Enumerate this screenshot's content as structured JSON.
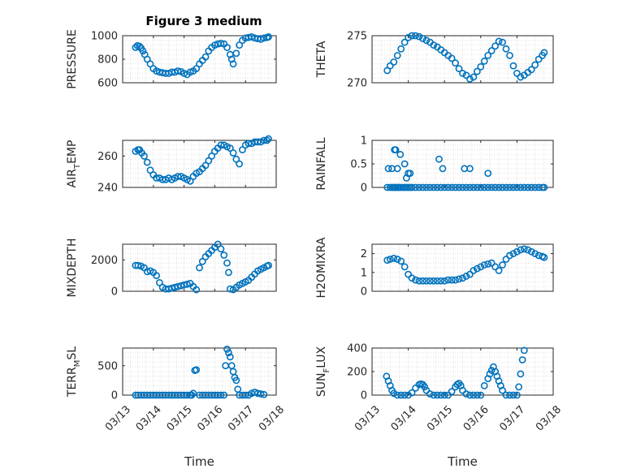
{
  "figure": {
    "title": "Figure 3 medium",
    "marker_color": "#0072BD"
  },
  "chart_data": [
    {
      "type": "scatter",
      "name": "PRESSURE",
      "ylabel": "PRESSURE",
      "xlabel": "",
      "ylim": [
        600,
        1000
      ],
      "yticks": [
        600,
        800,
        1000
      ],
      "show_xticklabels": false,
      "xlim": [
        0,
        5
      ],
      "grid": true,
      "x": [
        0.42,
        0.48,
        0.55,
        0.6,
        0.66,
        0.72,
        0.8,
        0.9,
        1.0,
        1.1,
        1.2,
        1.3,
        1.4,
        1.5,
        1.6,
        1.7,
        1.8,
        1.9,
        2.0,
        2.1,
        2.2,
        2.3,
        2.4,
        2.5,
        2.6,
        2.7,
        2.8,
        2.9,
        3.0,
        3.1,
        3.2,
        3.3,
        3.4,
        3.5,
        3.55,
        3.6,
        3.7,
        3.8,
        3.9,
        4.0,
        4.1,
        4.2,
        4.3,
        4.4,
        4.5,
        4.6,
        4.7,
        4.75
      ],
      "y": [
        900,
        915,
        910,
        895,
        870,
        840,
        800,
        760,
        720,
        700,
        690,
        685,
        680,
        680,
        690,
        690,
        700,
        695,
        680,
        670,
        690,
        700,
        720,
        760,
        790,
        820,
        870,
        900,
        920,
        930,
        935,
        930,
        900,
        840,
        800,
        760,
        850,
        920,
        960,
        980,
        985,
        990,
        980,
        975,
        970,
        980,
        985,
        990
      ]
    },
    {
      "type": "scatter",
      "name": "THETA",
      "ylabel": "THETA",
      "xlabel": "",
      "ylim": [
        270,
        275
      ],
      "yticks": [
        270,
        275
      ],
      "show_xticklabels": false,
      "xlim": [
        0,
        5
      ],
      "grid": true,
      "x": [
        0.42,
        0.5,
        0.6,
        0.7,
        0.8,
        0.9,
        1.0,
        1.1,
        1.2,
        1.3,
        1.4,
        1.5,
        1.6,
        1.7,
        1.8,
        1.9,
        2.0,
        2.1,
        2.2,
        2.3,
        2.4,
        2.5,
        2.6,
        2.7,
        2.8,
        2.9,
        3.0,
        3.1,
        3.2,
        3.3,
        3.4,
        3.5,
        3.6,
        3.7,
        3.8,
        3.9,
        4.0,
        4.1,
        4.2,
        4.3,
        4.4,
        4.5,
        4.6,
        4.7,
        4.75
      ],
      "y": [
        271.3,
        271.8,
        272.2,
        272.9,
        273.6,
        274.3,
        274.8,
        275.0,
        275.0,
        274.9,
        274.7,
        274.5,
        274.3,
        274.0,
        273.8,
        273.5,
        273.2,
        272.9,
        272.6,
        272.1,
        271.5,
        271.0,
        270.8,
        270.4,
        270.6,
        271.2,
        271.7,
        272.3,
        272.9,
        273.4,
        273.9,
        274.4,
        274.3,
        273.6,
        272.9,
        271.8,
        271.0,
        270.6,
        270.8,
        271.1,
        271.4,
        271.9,
        272.5,
        272.9,
        273.2
      ]
    },
    {
      "type": "scatter",
      "name": "AIR_TEMP",
      "ylabel": "AIR",
      "ylabel_sub": "T",
      "ylabel_tail": "EMP",
      "xlabel": "",
      "ylim": [
        240,
        270
      ],
      "yticks": [
        240,
        260
      ],
      "show_xticklabels": false,
      "xlim": [
        0,
        5
      ],
      "grid": true,
      "x": [
        0.42,
        0.5,
        0.55,
        0.62,
        0.7,
        0.8,
        0.9,
        1.0,
        1.1,
        1.2,
        1.3,
        1.4,
        1.5,
        1.6,
        1.7,
        1.8,
        1.9,
        2.0,
        2.1,
        2.2,
        2.3,
        2.4,
        2.5,
        2.6,
        2.7,
        2.8,
        2.9,
        3.0,
        3.1,
        3.2,
        3.3,
        3.4,
        3.5,
        3.6,
        3.7,
        3.8,
        3.9,
        4.0,
        4.1,
        4.2,
        4.3,
        4.4,
        4.5,
        4.6,
        4.7,
        4.75
      ],
      "y": [
        263,
        264,
        264,
        262,
        260,
        256,
        251,
        248,
        246,
        246,
        245,
        245,
        246,
        245,
        246,
        247,
        247,
        246,
        245,
        244,
        247,
        249,
        250,
        252,
        254,
        257,
        260,
        263,
        265,
        267,
        267,
        266,
        265,
        262,
        258,
        255,
        264,
        267,
        268,
        268,
        269,
        269,
        269,
        270,
        270,
        271
      ]
    },
    {
      "type": "scatter",
      "name": "RAINFALL",
      "ylabel": "RAINFALL",
      "xlabel": "",
      "ylim": [
        0,
        1
      ],
      "yticks": [
        0,
        0.5,
        1
      ],
      "show_xticklabels": false,
      "xlim": [
        0,
        5
      ],
      "grid": true,
      "x": [
        0.42,
        0.5,
        0.55,
        0.6,
        0.62,
        0.65,
        0.7,
        0.72,
        0.75,
        0.8,
        0.85,
        0.9,
        0.95,
        1.0,
        1.05,
        1.1,
        1.2,
        1.3,
        1.4,
        1.5,
        1.6,
        1.7,
        1.8,
        1.9,
        2.0,
        2.1,
        2.2,
        2.3,
        2.4,
        2.5,
        2.6,
        2.7,
        2.8,
        2.9,
        3.0,
        3.1,
        3.2,
        3.3,
        3.4,
        3.5,
        3.6,
        3.7,
        3.8,
        3.9,
        4.0,
        4.1,
        4.2,
        4.3,
        4.4,
        4.5,
        4.6,
        4.7,
        4.75,
        0.45,
        0.55,
        0.62,
        0.65,
        0.7,
        0.78,
        0.9,
        0.95,
        1.0,
        1.05,
        1.85,
        1.95,
        2.55,
        2.7,
        3.2
      ],
      "y": [
        0,
        0,
        0,
        0,
        0,
        0,
        0,
        0,
        0,
        0,
        0,
        0,
        0,
        0,
        0,
        0,
        0,
        0,
        0,
        0,
        0,
        0,
        0,
        0,
        0,
        0,
        0,
        0,
        0,
        0,
        0,
        0,
        0,
        0,
        0,
        0,
        0,
        0,
        0,
        0,
        0,
        0,
        0,
        0,
        0,
        0,
        0,
        0,
        0,
        0,
        0,
        0,
        0,
        0.4,
        0.4,
        0.8,
        0.8,
        0.4,
        0.7,
        0.5,
        0.2,
        0.3,
        0.3,
        0.6,
        0.4,
        0.4,
        0.4,
        0.3
      ]
    },
    {
      "type": "scatter",
      "name": "MIXDEPTH",
      "ylabel": "MIXDEPTH",
      "xlabel": "",
      "ylim": [
        0,
        3000
      ],
      "yticks": [
        0,
        2000
      ],
      "show_xticklabels": false,
      "xlim": [
        0,
        5
      ],
      "grid": true,
      "x": [
        0.42,
        0.5,
        0.6,
        0.7,
        0.8,
        0.9,
        1.0,
        1.1,
        1.2,
        1.3,
        1.4,
        1.5,
        1.6,
        1.7,
        1.8,
        1.9,
        2.0,
        2.1,
        2.2,
        2.3,
        2.4,
        2.5,
        2.6,
        2.7,
        2.8,
        2.9,
        3.0,
        3.1,
        3.2,
        3.3,
        3.4,
        3.45,
        3.5,
        3.6,
        3.7,
        3.8,
        3.9,
        4.0,
        4.1,
        4.2,
        4.3,
        4.4,
        4.5,
        4.6,
        4.7,
        4.75
      ],
      "y": [
        1650,
        1650,
        1600,
        1500,
        1250,
        1300,
        1200,
        1000,
        550,
        250,
        150,
        150,
        200,
        250,
        300,
        350,
        400,
        450,
        500,
        300,
        100,
        1500,
        1900,
        2200,
        2400,
        2600,
        2800,
        3000,
        2700,
        2300,
        1800,
        1200,
        150,
        100,
        250,
        400,
        500,
        600,
        700,
        900,
        1100,
        1300,
        1400,
        1500,
        1600,
        1650
      ]
    },
    {
      "type": "scatter",
      "name": "H2OMIXRA",
      "ylabel": "H2OMIXRA",
      "xlabel": "",
      "ylim": [
        0,
        2.5
      ],
      "yticks": [
        0,
        1,
        2
      ],
      "show_xticklabels": false,
      "xlim": [
        0,
        5
      ],
      "grid": true,
      "x": [
        0.42,
        0.5,
        0.6,
        0.7,
        0.8,
        0.9,
        1.0,
        1.1,
        1.2,
        1.3,
        1.4,
        1.5,
        1.6,
        1.7,
        1.8,
        1.9,
        2.0,
        2.1,
        2.2,
        2.3,
        2.4,
        2.5,
        2.6,
        2.7,
        2.8,
        2.9,
        3.0,
        3.1,
        3.2,
        3.3,
        3.4,
        3.5,
        3.6,
        3.7,
        3.8,
        3.9,
        4.0,
        4.1,
        4.2,
        4.3,
        4.4,
        4.5,
        4.6,
        4.7,
        4.75
      ],
      "y": [
        1.65,
        1.7,
        1.75,
        1.7,
        1.6,
        1.3,
        0.9,
        0.7,
        0.6,
        0.55,
        0.55,
        0.55,
        0.55,
        0.55,
        0.55,
        0.55,
        0.55,
        0.6,
        0.6,
        0.6,
        0.65,
        0.7,
        0.8,
        0.9,
        1.1,
        1.2,
        1.3,
        1.4,
        1.45,
        1.5,
        1.3,
        1.1,
        1.4,
        1.7,
        1.9,
        2.0,
        2.1,
        2.2,
        2.25,
        2.2,
        2.1,
        2.0,
        1.9,
        1.85,
        1.8
      ]
    },
    {
      "type": "scatter",
      "name": "TERR_MSL",
      "ylabel": "TERR",
      "ylabel_sub": "M",
      "ylabel_tail": "SL",
      "xlabel": "Time",
      "ylim": [
        0,
        800
      ],
      "yticks": [
        0,
        500
      ],
      "show_xticklabels": true,
      "xlim": [
        0,
        5
      ],
      "xticklabels": [
        "03/13",
        "03/14",
        "03/15",
        "03/16",
        "03/17",
        "03/18"
      ],
      "grid": true,
      "x": [
        0.42,
        0.5,
        0.6,
        0.7,
        0.8,
        0.9,
        1.0,
        1.1,
        1.2,
        1.3,
        1.4,
        1.5,
        1.6,
        1.7,
        1.8,
        1.9,
        2.0,
        2.1,
        2.2,
        2.25,
        2.3,
        2.35,
        2.4,
        2.5,
        2.6,
        2.7,
        2.8,
        2.9,
        3.0,
        3.1,
        3.2,
        3.3,
        3.35,
        3.4,
        3.45,
        3.5,
        3.55,
        3.6,
        3.65,
        3.7,
        3.75,
        3.8,
        3.9,
        4.0,
        4.1,
        4.2,
        4.3,
        4.4,
        4.5,
        4.6
      ],
      "y": [
        0,
        0,
        0,
        0,
        0,
        0,
        0,
        0,
        0,
        0,
        0,
        0,
        0,
        0,
        0,
        0,
        0,
        0,
        0,
        0,
        30,
        420,
        430,
        0,
        0,
        0,
        0,
        0,
        0,
        0,
        0,
        0,
        500,
        780,
        720,
        650,
        500,
        400,
        300,
        250,
        100,
        0,
        0,
        0,
        0,
        30,
        50,
        30,
        20,
        10
      ]
    },
    {
      "type": "scatter",
      "name": "SUN_FLUX",
      "ylabel": "SUN",
      "ylabel_sub": "F",
      "ylabel_tail": "LUX",
      "xlabel": "Time",
      "ylim": [
        0,
        400
      ],
      "yticks": [
        0,
        200,
        400
      ],
      "show_xticklabels": true,
      "xlim": [
        0,
        5
      ],
      "xticklabels": [
        "03/13",
        "03/14",
        "03/15",
        "03/16",
        "03/17",
        "03/18"
      ],
      "grid": true,
      "x": [
        0.4,
        0.45,
        0.5,
        0.55,
        0.6,
        0.7,
        0.8,
        0.9,
        1.0,
        1.1,
        1.2,
        1.3,
        1.35,
        1.4,
        1.45,
        1.5,
        1.6,
        1.7,
        1.8,
        1.9,
        2.0,
        2.1,
        2.2,
        2.3,
        2.35,
        2.4,
        2.45,
        2.5,
        2.6,
        2.7,
        2.8,
        2.9,
        3.0,
        3.1,
        3.2,
        3.25,
        3.3,
        3.35,
        3.4,
        3.45,
        3.5,
        3.55,
        3.6,
        3.7,
        3.8,
        3.9,
        4.0,
        4.05,
        4.1,
        4.15,
        4.2
      ],
      "y": [
        160,
        120,
        80,
        40,
        15,
        0,
        0,
        0,
        0,
        20,
        60,
        90,
        95,
        90,
        70,
        40,
        10,
        0,
        0,
        0,
        0,
        0,
        30,
        70,
        90,
        100,
        80,
        40,
        10,
        0,
        0,
        0,
        0,
        80,
        140,
        180,
        210,
        240,
        200,
        160,
        120,
        80,
        40,
        0,
        0,
        0,
        0,
        70,
        180,
        300,
        380
      ]
    }
  ]
}
